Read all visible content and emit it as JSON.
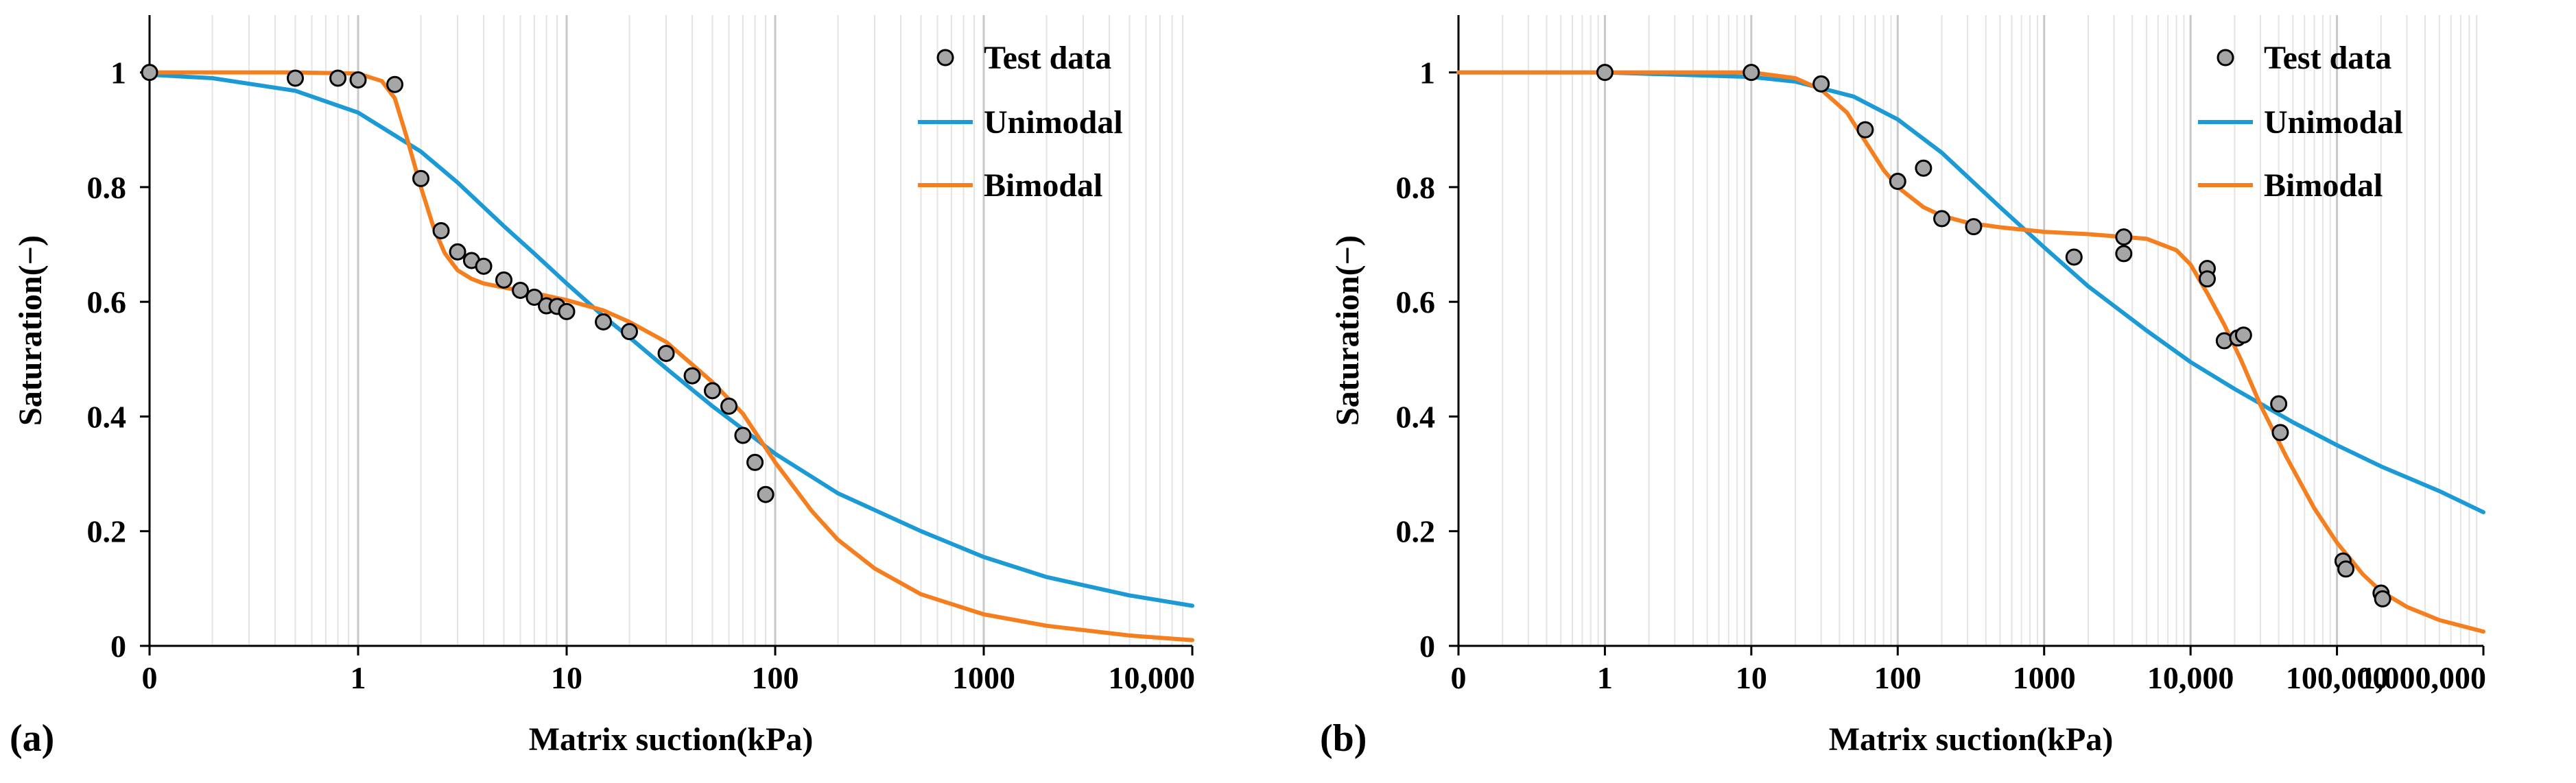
{
  "chart_data": [
    {
      "type": "line",
      "panel_label": "(a)",
      "xlabel": "Matrix suction(kPa)",
      "ylabel": "Saturation(−)",
      "xscale": "log",
      "xlim": [
        0.1,
        10000
      ],
      "ylim": [
        0,
        1.1
      ],
      "grid": "vertical minor and major log gridlines",
      "legend_placement": "top-right",
      "x_tick_labels": [
        "0",
        "1",
        "10",
        "100",
        "1000",
        "10,000"
      ],
      "y_tick_labels": [
        "0",
        "0.2",
        "0.4",
        "0.6",
        "0.8",
        "1"
      ],
      "y_ticks": [
        0,
        0.2,
        0.4,
        0.6,
        0.8,
        1
      ],
      "series": [
        {
          "name": "Test data",
          "kind": "scatter",
          "color": "#a6a6a6",
          "x": [
            0.1,
            0.5,
            0.8,
            1.0,
            1.5,
            2.0,
            2.5,
            3.0,
            3.5,
            4.0,
            5.0,
            6.0,
            7.0,
            8.0,
            9.0,
            10.0,
            15.0,
            20.0,
            30.0,
            40.0,
            50.0,
            60.0,
            70.0,
            80.0,
            90.0
          ],
          "y": [
            1.0,
            0.99,
            0.99,
            0.987,
            0.979,
            0.815,
            0.724,
            0.687,
            0.672,
            0.662,
            0.638,
            0.62,
            0.608,
            0.593,
            0.592,
            0.583,
            0.565,
            0.548,
            0.51,
            0.471,
            0.445,
            0.418,
            0.367,
            0.32,
            0.264
          ]
        },
        {
          "name": "Unimodal",
          "kind": "line",
          "color": "#1b9ad6",
          "x": [
            0.1,
            0.2,
            0.5,
            1,
            2,
            3,
            5,
            7,
            10,
            15,
            20,
            30,
            50,
            70,
            100,
            200,
            500,
            1000,
            2000,
            5000,
            10000
          ],
          "y": [
            0.996,
            0.99,
            0.968,
            0.93,
            0.862,
            0.808,
            0.732,
            0.684,
            0.632,
            0.575,
            0.538,
            0.484,
            0.418,
            0.378,
            0.335,
            0.266,
            0.2,
            0.155,
            0.12,
            0.088,
            0.07
          ]
        },
        {
          "name": "Bimodal",
          "kind": "line",
          "color": "#f57f1f",
          "x": [
            0.1,
            0.3,
            0.5,
            1.0,
            1.3,
            1.5,
            1.7,
            2.0,
            2.3,
            2.6,
            3.0,
            3.5,
            4,
            5,
            7,
            10,
            15,
            20,
            30,
            50,
            70,
            100,
            150,
            200,
            300,
            500,
            1000,
            2000,
            5000,
            10000
          ],
          "y": [
            1.0,
            1.0,
            1.0,
            0.998,
            0.985,
            0.955,
            0.89,
            0.8,
            0.73,
            0.685,
            0.655,
            0.64,
            0.632,
            0.625,
            0.615,
            0.603,
            0.585,
            0.565,
            0.53,
            0.46,
            0.405,
            0.32,
            0.235,
            0.185,
            0.135,
            0.09,
            0.055,
            0.035,
            0.018,
            0.01
          ]
        }
      ]
    },
    {
      "type": "line",
      "panel_label": "(b)",
      "xlabel": "Matrix suction(kPa)",
      "ylabel": "Saturation(−)",
      "xscale": "log",
      "xlim": [
        0.1,
        1000000
      ],
      "ylim": [
        0,
        1.1
      ],
      "grid": "vertical minor and major log gridlines",
      "legend_placement": "top-right",
      "x_tick_labels": [
        "0",
        "1",
        "10",
        "100",
        "1000",
        "10,000",
        "100,000",
        "1,000,000"
      ],
      "y_tick_labels": [
        "0",
        "0.2",
        "0.4",
        "0.6",
        "0.8",
        "1"
      ],
      "y_ticks": [
        0,
        0.2,
        0.4,
        0.6,
        0.8,
        1
      ],
      "series": [
        {
          "name": "Test data",
          "kind": "scatter",
          "color": "#a6a6a6",
          "x": [
            1,
            10,
            30,
            60,
            100,
            150,
            200,
            330,
            1600,
            3500,
            3500,
            13000,
            13000,
            17000,
            21000,
            23000,
            40000,
            41000,
            110000,
            115000,
            200000,
            205000
          ],
          "y": [
            1.0,
            1.0,
            0.98,
            0.9,
            0.81,
            0.833,
            0.745,
            0.731,
            0.678,
            0.684,
            0.713,
            0.658,
            0.64,
            0.532,
            0.537,
            0.542,
            0.422,
            0.372,
            0.148,
            0.134,
            0.092,
            0.082
          ]
        },
        {
          "name": "Unimodal",
          "kind": "line",
          "color": "#1b9ad6",
          "x": [
            0.1,
            1,
            10,
            20,
            50,
            100,
            200,
            500,
            1000,
            2000,
            5000,
            10000,
            20000,
            50000,
            100000,
            200000,
            500000,
            1000000
          ],
          "y": [
            1.0,
            1.0,
            0.992,
            0.984,
            0.958,
            0.918,
            0.86,
            0.765,
            0.695,
            0.627,
            0.55,
            0.495,
            0.448,
            0.39,
            0.35,
            0.313,
            0.27,
            0.233
          ]
        },
        {
          "name": "Bimodal",
          "kind": "line",
          "color": "#f57f1f",
          "x": [
            0.1,
            1,
            10,
            20,
            30,
            45,
            60,
            80,
            100,
            150,
            200,
            300,
            500,
            1000,
            2000,
            5000,
            8000,
            10000,
            13000,
            17000,
            22000,
            30000,
            45000,
            70000,
            100000,
            150000,
            200000,
            300000,
            500000,
            1000000
          ],
          "y": [
            1.0,
            1.0,
            1.0,
            0.99,
            0.97,
            0.93,
            0.88,
            0.83,
            0.8,
            0.765,
            0.75,
            0.738,
            0.73,
            0.722,
            0.718,
            0.71,
            0.69,
            0.665,
            0.615,
            0.56,
            0.5,
            0.42,
            0.33,
            0.24,
            0.18,
            0.125,
            0.095,
            0.068,
            0.045,
            0.025
          ]
        }
      ]
    }
  ]
}
